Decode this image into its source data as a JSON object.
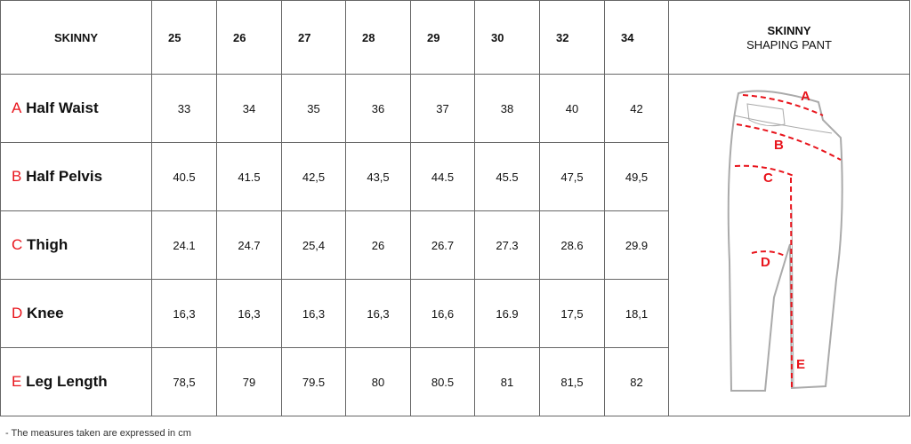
{
  "table": {
    "title": "SKINNY",
    "sizes": [
      "25",
      "26",
      "27",
      "28",
      "29",
      "30",
      "32",
      "34"
    ],
    "rows": [
      {
        "letter": "A",
        "label": "Half Waist",
        "values": [
          "33",
          "34",
          "35",
          "36",
          "37",
          "38",
          "40",
          "42"
        ]
      },
      {
        "letter": "B",
        "label": "Half Pelvis",
        "values": [
          "40.5",
          "41.5",
          "42,5",
          "43,5",
          "44.5",
          "45.5",
          "47,5",
          "49,5"
        ]
      },
      {
        "letter": "C",
        "label": "Thigh",
        "values": [
          "24.1",
          "24.7",
          "25,4",
          "26",
          "26.7",
          "27.3",
          "28.6",
          "29.9"
        ]
      },
      {
        "letter": "D",
        "label": "Knee",
        "values": [
          "16,3",
          "16,3",
          "16,3",
          "16,3",
          "16,6",
          "16.9",
          "17,5",
          "18,1"
        ]
      },
      {
        "letter": "E",
        "label": "Leg Length",
        "values": [
          "78,5",
          "79",
          "79.5",
          "80",
          "80.5",
          "81",
          "81,5",
          "82"
        ]
      }
    ]
  },
  "product": {
    "name": "SKINNY",
    "subtitle": "SHAPING PANT",
    "diagram_labels": [
      "A",
      "B",
      "C",
      "D",
      "E"
    ]
  },
  "note": "- The measures taken are expressed in cm",
  "colors": {
    "accent": "#e8141c",
    "border": "#666666",
    "sketch": "#aaaaaa"
  }
}
